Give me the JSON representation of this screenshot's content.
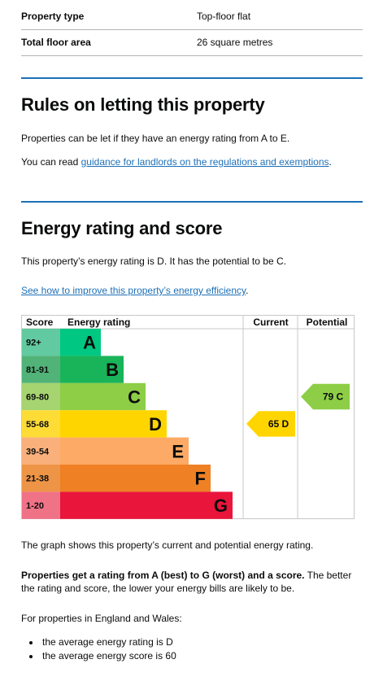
{
  "summary": [
    {
      "label": "Property type",
      "value": "Top-floor flat"
    },
    {
      "label": "Total floor area",
      "value": "26 square metres"
    }
  ],
  "letting": {
    "heading": "Rules on letting this property",
    "text1": "Properties can be let if they have an energy rating from A to E.",
    "text2_prefix": "You can read ",
    "text2_link": "guidance for landlords on the regulations and exemptions",
    "text2_suffix": "."
  },
  "energy": {
    "heading": "Energy rating and score",
    "intro": "This property’s energy rating is D. It has the potential to be C.",
    "improve_link": "See how to improve this property’s energy efficiency",
    "improve_suffix": ".",
    "graph_note": "The graph shows this property’s current and potential energy rating.",
    "bold_text": "Properties get a rating from A (best) to G (worst) and a score.",
    "rest_text": " The better the rating and score, the lower your energy bills are likely to be.",
    "regions_text": "For properties in England and Wales:",
    "bullets": [
      "the average energy rating is D",
      "the average energy score is 60"
    ]
  },
  "chart_data": {
    "type": "bar",
    "headers": {
      "score": "Score",
      "rating": "Energy rating",
      "current": "Current",
      "potential": "Potential"
    },
    "bands": [
      {
        "range": "92+",
        "letter": "A",
        "color": "#00c781",
        "range_bg": "#62caa0"
      },
      {
        "range": "81-91",
        "letter": "B",
        "color": "#19b459",
        "range_bg": "#51b377"
      },
      {
        "range": "69-80",
        "letter": "C",
        "color": "#8dce46",
        "range_bg": "#a6d471"
      },
      {
        "range": "55-68",
        "letter": "D",
        "color": "#ffd500",
        "range_bg": "#fddc36"
      },
      {
        "range": "39-54",
        "letter": "E",
        "color": "#fcaa65",
        "range_bg": "#f9b07b"
      },
      {
        "range": "21-38",
        "letter": "F",
        "color": "#ef8023",
        "range_bg": "#ee9446"
      },
      {
        "range": "1-20",
        "letter": "G",
        "color": "#e9153b",
        "range_bg": "#f07287"
      }
    ],
    "current": {
      "score": 65,
      "letter": "D",
      "label": "65  D"
    },
    "potential": {
      "score": 79,
      "letter": "C",
      "label": "79  C"
    }
  }
}
